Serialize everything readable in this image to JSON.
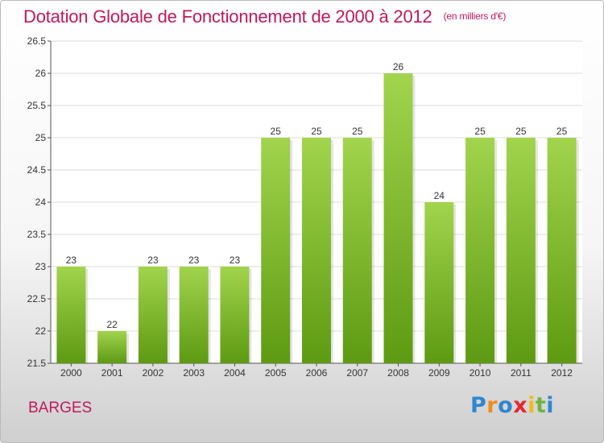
{
  "title": "Dotation Globale de Fonctionnement de 2000 à 2012",
  "subtitle": "(en milliers d'€)",
  "city": "BARGES",
  "logo": {
    "text": "Proxiti",
    "colors": [
      "#2f86d1",
      "#f08c1c",
      "#2f86d1",
      "#e2282f",
      "#f2b81c",
      "#6cb43f",
      "#2f86d1"
    ]
  },
  "colors": {
    "title": "#c2185b",
    "bar_top": "#a2d44d",
    "bar_bottom": "#5d9a12",
    "grid": "#dedede"
  },
  "chart_data": {
    "type": "bar",
    "categories": [
      "2000",
      "2001",
      "2002",
      "2003",
      "2004",
      "2005",
      "2006",
      "2007",
      "2008",
      "2009",
      "2010",
      "2011",
      "2012"
    ],
    "values": [
      23,
      22,
      23,
      23,
      23,
      25,
      25,
      25,
      26,
      24,
      25,
      25,
      25
    ],
    "data_labels": [
      "23",
      "22",
      "23",
      "23",
      "23",
      "25",
      "25",
      "25",
      "26",
      "24",
      "25",
      "25",
      "25"
    ],
    "ylim": [
      21.5,
      26.5
    ],
    "yticks": [
      21.5,
      22,
      22.5,
      23,
      23.5,
      24,
      24.5,
      25,
      25.5,
      26,
      26.5
    ],
    "ytick_labels": [
      "21.5",
      "22",
      "22.5",
      "23",
      "23.5",
      "24",
      "24.5",
      "25",
      "25.5",
      "26",
      "26.5"
    ],
    "xlabel": "",
    "ylabel": "",
    "grid": true,
    "legend": "none"
  }
}
